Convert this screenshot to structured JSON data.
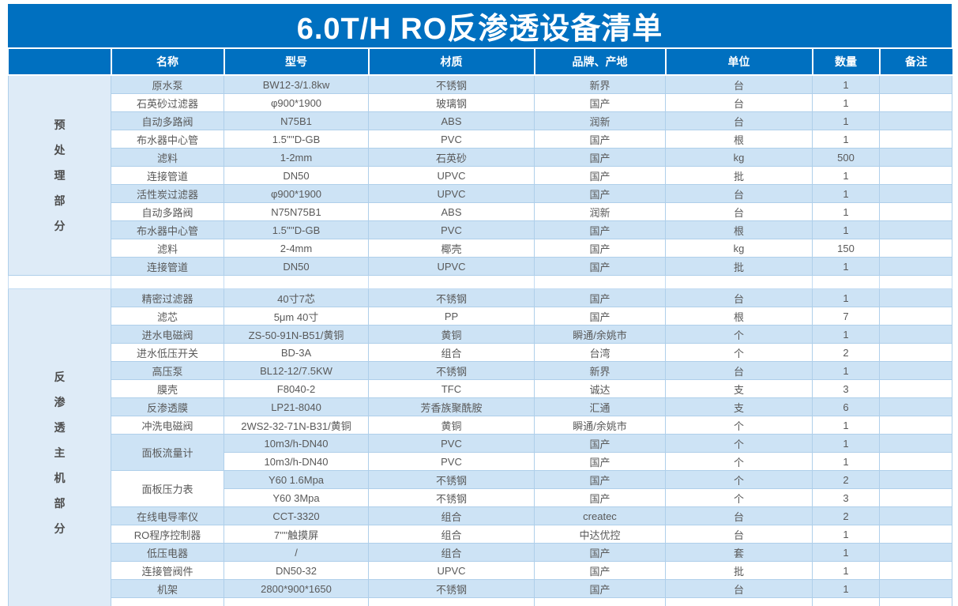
{
  "title": "6.0T/H RO反渗透设备清单",
  "columns": [
    "",
    "名称",
    "型号",
    "材质",
    "品牌、产地",
    "单位",
    "数量",
    "备注"
  ],
  "colors": {
    "header_blue": "#0070C0",
    "stripe_blue": "#CDE3F5",
    "section_blue": "#DEEBF7",
    "grid_border": "#AFCFEA",
    "text_gray": "#595959",
    "header_text": "#FFFFFF"
  },
  "sections": [
    {
      "label": "预处理部分",
      "rows": [
        {
          "name": "原水泵",
          "model": "BW12-3/1.8kw",
          "material": "不锈钢",
          "brand": "新界",
          "unit": "台",
          "qty": "1",
          "note": ""
        },
        {
          "name": "石英砂过滤器",
          "model": "φ900*1900",
          "material": "玻璃钢",
          "brand": "国产",
          "unit": "台",
          "qty": "1",
          "note": ""
        },
        {
          "name": "自动多路阀",
          "model": "N75B1",
          "material": "ABS",
          "brand": "润新",
          "unit": "台",
          "qty": "1",
          "note": ""
        },
        {
          "name": "布水器中心管",
          "model": "1.5''''D-GB",
          "material": "PVC",
          "brand": "国产",
          "unit": "根",
          "qty": "1",
          "note": ""
        },
        {
          "name": "滤料",
          "model": "1-2mm",
          "material": "石英砂",
          "brand": "国产",
          "unit": "kg",
          "qty": "500",
          "note": ""
        },
        {
          "name": "连接管道",
          "model": "DN50",
          "material": "UPVC",
          "brand": "国产",
          "unit": "批",
          "qty": "1",
          "note": ""
        },
        {
          "name": "活性炭过滤器",
          "model": "φ900*1900",
          "material": "UPVC",
          "brand": "国产",
          "unit": "台",
          "qty": "1",
          "note": ""
        },
        {
          "name": "自动多路阀",
          "model": "N75N75B1",
          "material": "ABS",
          "brand": "润新",
          "unit": "台",
          "qty": "1",
          "note": ""
        },
        {
          "name": "布水器中心管",
          "model": "1.5''''D-GB",
          "material": "PVC",
          "brand": "国产",
          "unit": "根",
          "qty": "1",
          "note": ""
        },
        {
          "name": "滤料",
          "model": "2-4mm",
          "material": "椰壳",
          "brand": "国产",
          "unit": "kg",
          "qty": "150",
          "note": ""
        },
        {
          "name": "连接管道",
          "model": "DN50",
          "material": "UPVC",
          "brand": "国产",
          "unit": "批",
          "qty": "1",
          "note": ""
        }
      ]
    },
    {
      "label": "反渗透主机部分",
      "rows": [
        {
          "name": "精密过滤器",
          "model": "40寸7芯",
          "material": "不锈钢",
          "brand": "国产",
          "unit": "台",
          "qty": "1",
          "note": ""
        },
        {
          "name": "滤芯",
          "model": "5μm 40寸",
          "material": "PP",
          "brand": "国产",
          "unit": "根",
          "qty": "7",
          "note": ""
        },
        {
          "name": "进水电磁阀",
          "model": "ZS-50-91N-B51/黄铜",
          "material": "黄铜",
          "brand": "瞬通/余姚市",
          "unit": "个",
          "qty": "1",
          "note": ""
        },
        {
          "name": "进水低压开关",
          "model": "BD-3A",
          "material": "组合",
          "brand": "台湾",
          "unit": "个",
          "qty": "2",
          "note": ""
        },
        {
          "name": "高压泵",
          "model": "BL12-12/7.5KW",
          "material": "不锈钢",
          "brand": "新界",
          "unit": "台",
          "qty": "1",
          "note": ""
        },
        {
          "name": "膜壳",
          "model": "F8040-2",
          "material": "TFC",
          "brand": "诚达",
          "unit": "支",
          "qty": "3",
          "note": ""
        },
        {
          "name": "反渗透膜",
          "model": "LP21-8040",
          "material": "芳香族聚酰胺",
          "brand": "汇通",
          "unit": "支",
          "qty": "6",
          "note": ""
        },
        {
          "name": "冲洗电磁阀",
          "model": "2WS2-32-71N-B31/黄铜",
          "material": "黄铜",
          "brand": "瞬通/余姚市",
          "unit": "个",
          "qty": "1",
          "note": ""
        },
        {
          "name": "面板流量计",
          "name_span": 2,
          "name_shade": "blue",
          "model": "10m3/h-DN40",
          "material": "PVC",
          "brand": "国产",
          "unit": "个",
          "qty": "1",
          "note": ""
        },
        {
          "name": "",
          "name_span": 0,
          "model": "10m3/h-DN40",
          "material": "PVC",
          "brand": "国产",
          "unit": "个",
          "qty": "1",
          "note": ""
        },
        {
          "name": "面板压力表",
          "name_span": 2,
          "name_shade": "white",
          "model": "Y60 1.6Mpa",
          "material": "不锈钢",
          "brand": "国产",
          "unit": "个",
          "qty": "2",
          "note": ""
        },
        {
          "name": "",
          "name_span": 0,
          "model": "Y60 3Mpa",
          "material": "不锈钢",
          "brand": "国产",
          "unit": "个",
          "qty": "3",
          "note": ""
        },
        {
          "name": "在线电导率仪",
          "model": "CCT-3320",
          "material": "组合",
          "brand": "createc",
          "unit": "台",
          "qty": "2",
          "note": ""
        },
        {
          "name": "RO程序控制器",
          "model": "7''''触摸屏",
          "material": "组合",
          "brand": "中达优控",
          "unit": "台",
          "qty": "1",
          "note": ""
        },
        {
          "name": "低压电器",
          "model": "/",
          "material": "组合",
          "brand": "国产",
          "unit": "套",
          "qty": "1",
          "note": ""
        },
        {
          "name": "连接管阀件",
          "model": "DN50-32",
          "material": "UPVC",
          "brand": "国产",
          "unit": "批",
          "qty": "1",
          "note": ""
        },
        {
          "name": "机架",
          "model": "2800*900*1650",
          "material": "不锈钢",
          "brand": "国产",
          "unit": "台",
          "qty": "1",
          "note": ""
        },
        {
          "name": "",
          "model": "",
          "material": "",
          "brand": "",
          "unit": "",
          "qty": "",
          "note": ""
        }
      ]
    }
  ]
}
